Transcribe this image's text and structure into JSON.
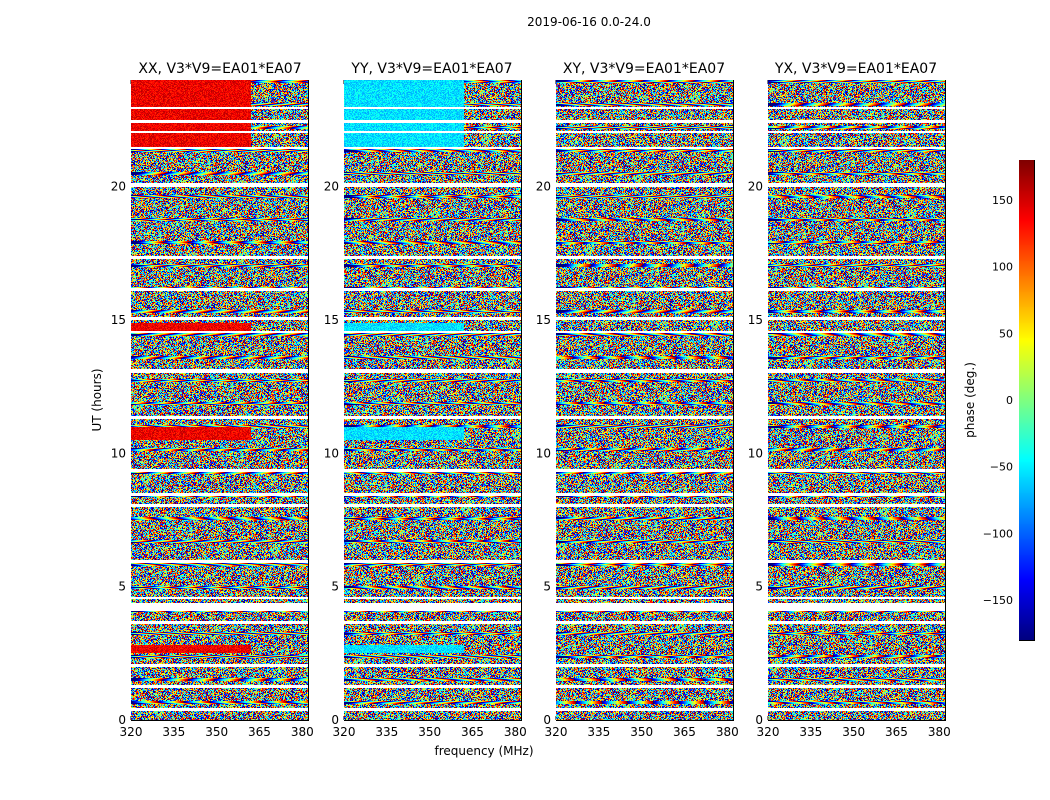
{
  "chart_data": {
    "type": "heatmap",
    "suptitle": "2019-06-16 0.0-24.0",
    "panels": [
      {
        "title": "XX, V3*V9=EA01*EA07",
        "polarization": "XX",
        "baseline_text": "V3*V9=EA01*EA07",
        "coherent_phase": 140
      },
      {
        "title": "YY, V3*V9=EA01*EA07",
        "polarization": "YY",
        "baseline_text": "V3*V9=EA01*EA07",
        "coherent_phase": -55
      },
      {
        "title": "XY, V3*V9=EA01*EA07",
        "polarization": "XY",
        "baseline_text": "V3*V9=EA01*EA07",
        "coherent_phase": null
      },
      {
        "title": "YX, V3*V9=EA01*EA07",
        "polarization": "YX",
        "baseline_text": "V3*V9=EA01*EA07",
        "coherent_phase": null
      }
    ],
    "xlabel": "frequency (MHz)",
    "ylabel": "UT (hours)",
    "xlim": [
      320,
      382
    ],
    "xticks": [
      320,
      335,
      350,
      365,
      380
    ],
    "ylim": [
      0,
      24
    ],
    "yticks": [
      0,
      5,
      10,
      15,
      20
    ],
    "colorbar": {
      "label": "phase (deg.)",
      "range": [
        -180,
        180
      ],
      "ticks": [
        150,
        100,
        50,
        0,
        -50,
        -100,
        -150
      ],
      "tick_labels": [
        "150",
        "100",
        "50",
        "0",
        "−50",
        "−100",
        "−150"
      ],
      "colormap": "jet"
    },
    "flagged_gaps_hours": [
      [
        0.35,
        0.45
      ],
      [
        1.2,
        1.3
      ],
      [
        2.0,
        2.1
      ],
      [
        3.6,
        3.7
      ],
      [
        4.1,
        4.4
      ],
      [
        4.55,
        4.6
      ],
      [
        5.9,
        6.0
      ],
      [
        8.0,
        8.1
      ],
      [
        8.4,
        8.5
      ],
      [
        9.3,
        9.4
      ],
      [
        11.3,
        11.4
      ],
      [
        13.0,
        13.15
      ],
      [
        14.5,
        14.6
      ],
      [
        15.0,
        15.1
      ],
      [
        16.1,
        16.2
      ],
      [
        17.3,
        17.4
      ],
      [
        20.0,
        20.15
      ],
      [
        21.4,
        21.5
      ],
      [
        22.0,
        22.1
      ],
      [
        22.4,
        22.5
      ],
      [
        22.9,
        23.0
      ]
    ],
    "coherent_bands_hours": [
      [
        2.5,
        2.8
      ],
      [
        10.5,
        11.0
      ],
      [
        14.6,
        14.9
      ],
      [
        21.5,
        24.0
      ]
    ],
    "coherent_band_freq_max_mhz": 362
  }
}
